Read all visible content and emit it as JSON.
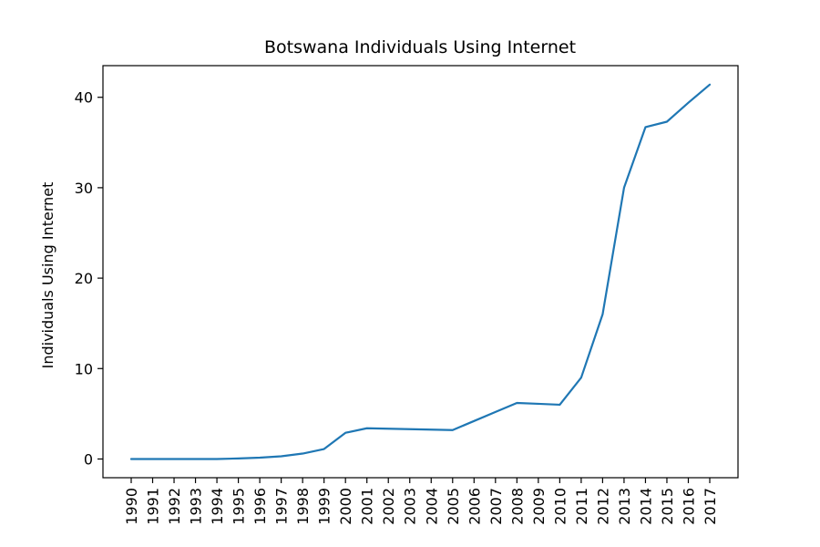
{
  "chart_data": {
    "type": "line",
    "title": "Botswana Individuals Using Internet",
    "xlabel": "",
    "ylabel": "Individuals Using Internet",
    "x": [
      "1990",
      "1991",
      "1992",
      "1993",
      "1994",
      "1995",
      "1996",
      "1997",
      "1998",
      "1999",
      "2000",
      "2001",
      "2002",
      "2003",
      "2004",
      "2005",
      "2006",
      "2007",
      "2008",
      "2009",
      "2010",
      "2011",
      "2012",
      "2013",
      "2014",
      "2015",
      "2016",
      "2017"
    ],
    "series": [
      {
        "name": "",
        "color": "#1f77b4",
        "values": [
          0,
          0,
          0,
          0,
          0,
          0.06,
          0.15,
          0.3,
          0.6,
          1.1,
          2.9,
          3.4,
          3.35,
          3.3,
          3.25,
          3.2,
          4.2,
          5.2,
          6.2,
          6.1,
          6.0,
          9.0,
          16.0,
          30.0,
          36.7,
          37.3,
          39.4,
          41.4
        ]
      }
    ],
    "yticks": [
      0,
      10,
      20,
      30,
      40
    ],
    "ylim": [
      -2.07,
      43.5
    ],
    "grid": false,
    "legend": "none"
  }
}
